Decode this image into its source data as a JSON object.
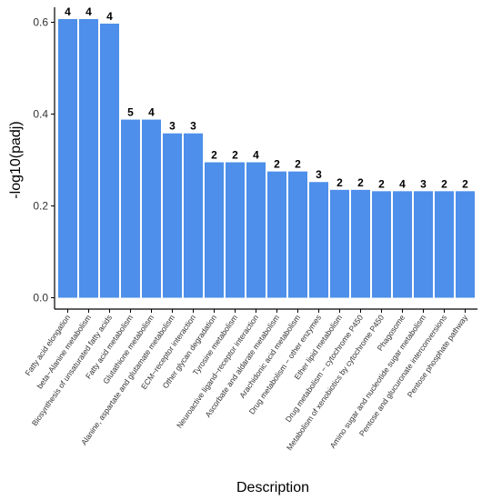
{
  "chart_data": {
    "type": "bar",
    "title": "",
    "xlabel": "Description",
    "ylabel": "-log10(padj)",
    "ylim": [
      0,
      0.65
    ],
    "yticks": [
      0.0,
      0.2,
      0.4,
      0.6
    ],
    "ytick_labels": [
      "0.0",
      "0.2",
      "0.4",
      "0.6"
    ],
    "bar_color": "#4d8fea",
    "grid": false,
    "categories": [
      "Fatty acid elongation",
      "beta−Alanine metabolism",
      "Biosynthesis of unsaturated fatty acids",
      "Fatty acid metabolism",
      "Glutathione metabolism",
      "Alanine, aspartate and glutamate metabolism",
      "ECM−receptor interaction",
      "Other glycan degradation",
      "Tyrosine metabolism",
      "Neuroactive ligand−receptor interaction",
      "Ascorbate and aldarate metabolism",
      "Arachidonic acid metabolism",
      "Drug metabolism − other enzymes",
      "Ether lipid metabolism",
      "Drug metabolism − cytochrome P450",
      "Metabolism of xenobiotics by cytochrome P450",
      "Phagosome",
      "Amino sugar and nucleotide sugar metabolism",
      "Pentose and glucuronate interconversions",
      "Pentose phosphate pathway"
    ],
    "values": [
      0.607,
      0.607,
      0.597,
      0.388,
      0.388,
      0.358,
      0.358,
      0.295,
      0.295,
      0.295,
      0.275,
      0.275,
      0.252,
      0.235,
      0.235,
      0.232,
      0.232,
      0.232,
      0.232,
      0.232
    ],
    "bar_labels": [
      "4",
      "4",
      "4",
      "5",
      "4",
      "3",
      "3",
      "2",
      "2",
      "4",
      "2",
      "2",
      "3",
      "2",
      "2",
      "2",
      "4",
      "3",
      "2",
      "2"
    ]
  }
}
